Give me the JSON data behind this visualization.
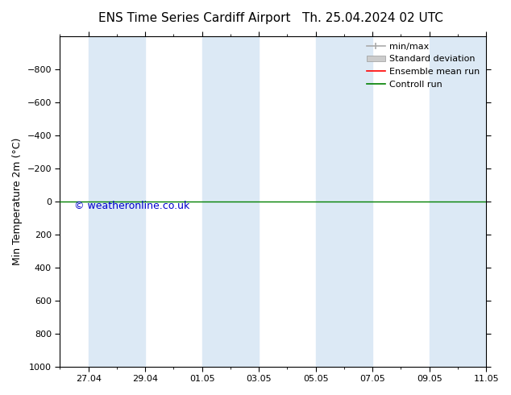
{
  "title_left": "ENS Time Series Cardiff Airport",
  "title_right": "Th. 25.04.2024 02 UTC",
  "ylabel": "Min Temperature 2m (°C)",
  "ylim": [
    1000,
    -1000
  ],
  "yticks": [
    1000,
    800,
    600,
    400,
    200,
    0,
    -200,
    -400,
    -600,
    -800
  ],
  "xlim": [
    0,
    15
  ],
  "xtick_labels": [
    "27.04",
    "29.04",
    "01.05",
    "03.05",
    "05.05",
    "07.05",
    "09.05",
    "11.05"
  ],
  "xtick_positions": [
    1,
    3,
    5,
    7,
    9,
    11,
    13,
    15
  ],
  "background_color": "#ffffff",
  "plot_bg_color": "#ffffff",
  "shaded_bands": [
    [
      1,
      3
    ],
    [
      5,
      7
    ],
    [
      9,
      11
    ],
    [
      13,
      15
    ]
  ],
  "shaded_color": "#dce9f5",
  "control_run_y": 0,
  "control_run_color": "#008000",
  "ensemble_mean_color": "#ff0000",
  "minmax_color": "#aaaaaa",
  "stddev_color": "#cccccc",
  "watermark": "© weatheronline.co.uk",
  "watermark_color": "#0000cc",
  "legend_entries": [
    "min/max",
    "Standard deviation",
    "Ensemble mean run",
    "Controll run"
  ],
  "legend_colors": [
    "#aaaaaa",
    "#cccccc",
    "#ff0000",
    "#008000"
  ]
}
